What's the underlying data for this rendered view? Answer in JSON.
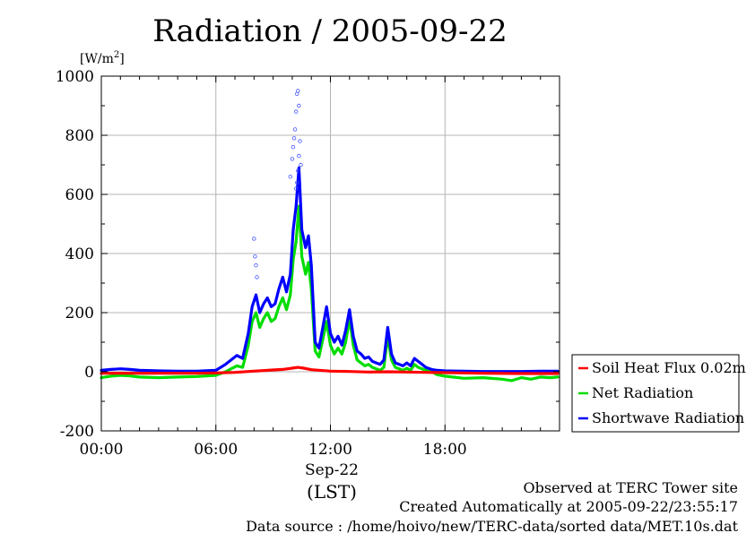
{
  "chart_data": {
    "type": "line",
    "title": "Radiation / 2005-09-22",
    "ylabel": "[W/m2]",
    "ylabel_base": "[W/m",
    "ylabel_sup": "2",
    "ylabel_tail": "]",
    "ylim": [
      -200,
      1000
    ],
    "xlim": [
      0,
      24
    ],
    "yticks": [
      -200,
      0,
      200,
      400,
      600,
      800,
      1000
    ],
    "ytick_labels": [
      "-200",
      "0",
      "200",
      "400",
      "600",
      "800",
      "1000"
    ],
    "xticks": [
      0,
      6,
      12,
      18
    ],
    "xtick_labels": [
      "00:00",
      "06:00",
      "12:00",
      "18:00"
    ],
    "date_label": "Sep-22",
    "timezone_label": "(LST)",
    "grid": true,
    "legend_position": "right",
    "series": [
      {
        "name": "Soil Heat Flux 0.02m",
        "color": "#ff0000",
        "x": [
          0,
          3,
          5,
          6,
          7,
          8,
          9,
          9.5,
          10,
          10.3,
          10.6,
          11,
          12,
          13,
          14,
          15,
          16,
          17,
          18,
          20,
          22,
          23.9
        ],
        "y": [
          -5,
          -5,
          -5,
          -4,
          -2,
          2,
          6,
          8,
          12,
          15,
          12,
          7,
          2,
          1,
          -1,
          0,
          -1,
          -2,
          -3,
          -5,
          -6,
          -6
        ]
      },
      {
        "name": "Net Radiation",
        "color": "#00dd00",
        "x": [
          0,
          0.5,
          1,
          1.5,
          2,
          3,
          4,
          5,
          6,
          6.5,
          6.8,
          7.1,
          7.4,
          7.7,
          7.9,
          8.1,
          8.3,
          8.5,
          8.7,
          8.9,
          9.1,
          9.3,
          9.5,
          9.7,
          9.9,
          10.05,
          10.2,
          10.35,
          10.5,
          10.7,
          10.85,
          11.0,
          11.2,
          11.4,
          11.6,
          11.8,
          12.0,
          12.2,
          12.4,
          12.6,
          12.8,
          13.0,
          13.2,
          13.4,
          13.6,
          13.8,
          14.0,
          14.2,
          14.4,
          14.6,
          14.8,
          15.0,
          15.2,
          15.4,
          15.6,
          15.8,
          16.0,
          16.2,
          16.4,
          16.6,
          16.8,
          17.0,
          17.3,
          17.6,
          18.0,
          19,
          20,
          21,
          21.5,
          22,
          22.5,
          23,
          23.5,
          23.9
        ],
        "y": [
          -20,
          -15,
          -12,
          -14,
          -18,
          -20,
          -18,
          -16,
          -12,
          0,
          10,
          20,
          15,
          90,
          170,
          200,
          150,
          180,
          200,
          170,
          180,
          220,
          250,
          210,
          260,
          380,
          440,
          560,
          390,
          330,
          370,
          280,
          70,
          50,
          110,
          170,
          90,
          60,
          80,
          60,
          100,
          180,
          90,
          40,
          30,
          20,
          25,
          15,
          10,
          5,
          15,
          120,
          40,
          15,
          10,
          5,
          12,
          5,
          25,
          15,
          10,
          5,
          0,
          -10,
          -15,
          -22,
          -20,
          -25,
          -30,
          -20,
          -25,
          -18,
          -20,
          -18
        ]
      },
      {
        "name": "Shortwave Radiation",
        "color": "#0000ff",
        "x": [
          0,
          0.5,
          1,
          1.5,
          2,
          3,
          4,
          5,
          6,
          6.5,
          6.8,
          7.1,
          7.4,
          7.7,
          7.9,
          8.1,
          8.3,
          8.5,
          8.7,
          8.9,
          9.1,
          9.3,
          9.5,
          9.7,
          9.9,
          10.05,
          10.2,
          10.35,
          10.5,
          10.7,
          10.85,
          11.0,
          11.2,
          11.4,
          11.6,
          11.8,
          12.0,
          12.2,
          12.4,
          12.6,
          12.8,
          13.0,
          13.2,
          13.4,
          13.6,
          13.8,
          14.0,
          14.2,
          14.4,
          14.6,
          14.8,
          15.0,
          15.2,
          15.4,
          15.6,
          15.8,
          16.0,
          16.2,
          16.4,
          16.6,
          16.8,
          17.0,
          17.3,
          17.6,
          18.0,
          19,
          20,
          21,
          22,
          23,
          23.9
        ],
        "y": [
          5,
          8,
          10,
          8,
          5,
          3,
          2,
          2,
          5,
          25,
          40,
          55,
          45,
          130,
          220,
          260,
          200,
          230,
          250,
          220,
          230,
          280,
          320,
          270,
          330,
          480,
          560,
          690,
          480,
          420,
          460,
          360,
          100,
          80,
          150,
          220,
          130,
          100,
          120,
          90,
          140,
          210,
          120,
          70,
          60,
          45,
          50,
          35,
          30,
          25,
          40,
          150,
          60,
          30,
          25,
          20,
          30,
          20,
          45,
          35,
          25,
          15,
          8,
          5,
          3,
          2,
          1,
          1,
          1,
          2,
          2
        ]
      }
    ],
    "scatter": {
      "color": "#4455ff",
      "x": [
        8.0,
        8.05,
        8.1,
        8.15,
        9.9,
        10.0,
        10.05,
        10.1,
        10.15,
        10.2,
        10.25,
        10.3,
        10.35,
        10.4,
        10.45,
        10.2,
        10.25,
        10.3,
        10.35
      ],
      "y": [
        450,
        390,
        360,
        320,
        660,
        720,
        760,
        790,
        820,
        880,
        940,
        950,
        900,
        780,
        700,
        620,
        640,
        680,
        730
      ]
    },
    "footer": {
      "line1": "Observed at TERC Tower site",
      "line2": "Created Automatically at 2005-09-22/23:55:17",
      "line3": "Data source : /home/hoivo/new/TERC-data/sorted  data/MET.10s.dat"
    }
  }
}
